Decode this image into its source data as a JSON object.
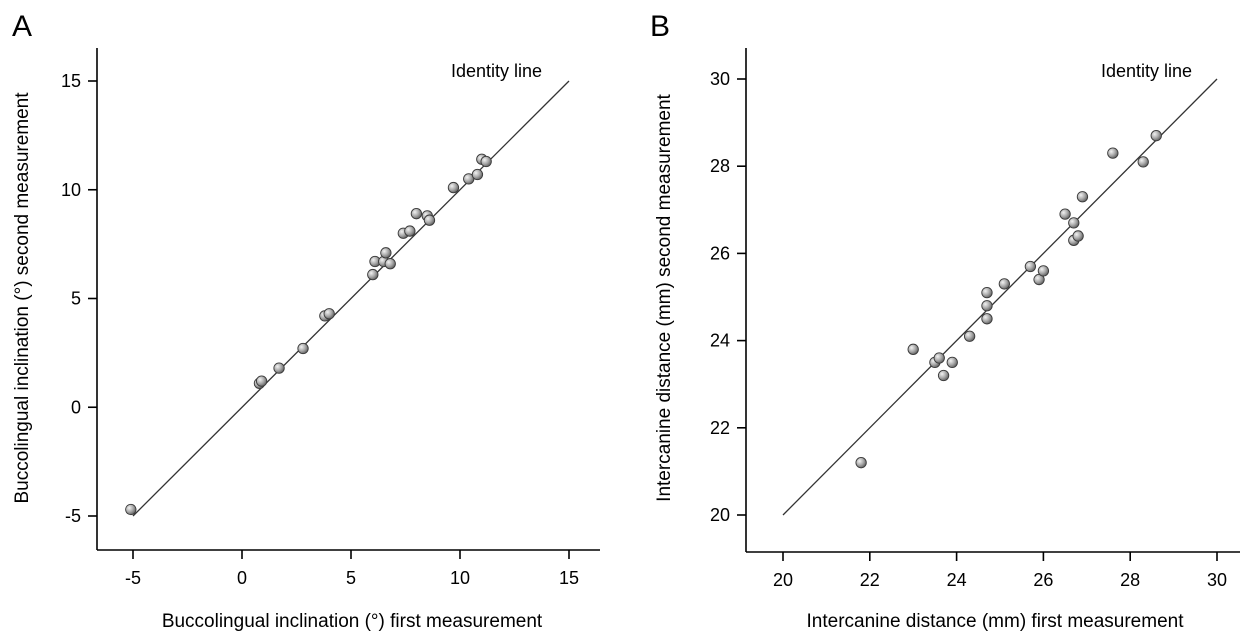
{
  "colors": {
    "point_fill": "#9a9a9a",
    "point_stroke": "#3a3a3a",
    "line": "#333333",
    "axis": "#000000"
  },
  "chart_data": [
    {
      "type": "scatter",
      "panel_label": "A",
      "xlabel": "Buccolingual inclination (°) first measurement",
      "ylabel": "Buccolingual inclination (°) second measurement",
      "xlim": [
        -6.5,
        16.5
      ],
      "ylim": [
        -6.5,
        16.5
      ],
      "xticks": [
        -5,
        0,
        5,
        10,
        15
      ],
      "yticks": [
        -5,
        0,
        5,
        10,
        15
      ],
      "xtick_labels": [
        "-5",
        "0",
        "5",
        "10",
        "15"
      ],
      "ytick_labels": [
        "-5",
        "0",
        "5",
        "10",
        "15"
      ],
      "grid": false,
      "legend": "none",
      "annotations": [
        {
          "text": "Identity line"
        }
      ],
      "identity_line": {
        "from": [
          -5,
          -5
        ],
        "to": [
          15,
          15
        ]
      },
      "x": [
        -5.1,
        0.8,
        0.9,
        1.7,
        2.8,
        3.8,
        4.0,
        6.0,
        6.1,
        6.5,
        6.6,
        6.8,
        7.4,
        7.7,
        8.0,
        8.5,
        8.6,
        9.7,
        10.4,
        10.8,
        11.0,
        11.2
      ],
      "y": [
        -4.7,
        1.1,
        1.2,
        1.8,
        2.7,
        4.2,
        4.3,
        6.1,
        6.7,
        6.7,
        7.1,
        6.6,
        8.0,
        8.1,
        8.9,
        8.8,
        8.6,
        10.1,
        10.5,
        10.7,
        11.4,
        11.3
      ]
    },
    {
      "type": "scatter",
      "panel_label": "B",
      "xlabel": "Intercanine distance (mm) first measurement",
      "ylabel": "Intercanine distance (mm) second measurement",
      "xlim": [
        19.2,
        30.8
      ],
      "ylim": [
        19.2,
        30.8
      ],
      "xticks": [
        20,
        22,
        24,
        26,
        28,
        30
      ],
      "yticks": [
        20,
        22,
        24,
        26,
        28,
        30
      ],
      "xtick_labels": [
        "20",
        "22",
        "24",
        "26",
        "28",
        "30"
      ],
      "ytick_labels": [
        "20",
        "22",
        "24",
        "26",
        "28",
        "30"
      ],
      "grid": false,
      "legend": "none",
      "annotations": [
        {
          "text": "Identity line"
        }
      ],
      "identity_line": {
        "from": [
          20,
          20
        ],
        "to": [
          30,
          30
        ]
      },
      "x": [
        21.8,
        23.0,
        23.5,
        23.6,
        23.7,
        23.9,
        24.3,
        24.7,
        24.7,
        24.7,
        25.1,
        25.7,
        25.9,
        26.0,
        26.5,
        26.7,
        26.7,
        26.8,
        26.9,
        27.6,
        28.3,
        28.6
      ],
      "y": [
        21.2,
        23.8,
        23.5,
        23.6,
        23.2,
        23.5,
        24.1,
        25.1,
        24.8,
        24.5,
        25.3,
        25.7,
        25.4,
        25.6,
        26.9,
        26.7,
        26.3,
        26.4,
        27.3,
        28.3,
        28.1,
        28.7
      ]
    }
  ]
}
